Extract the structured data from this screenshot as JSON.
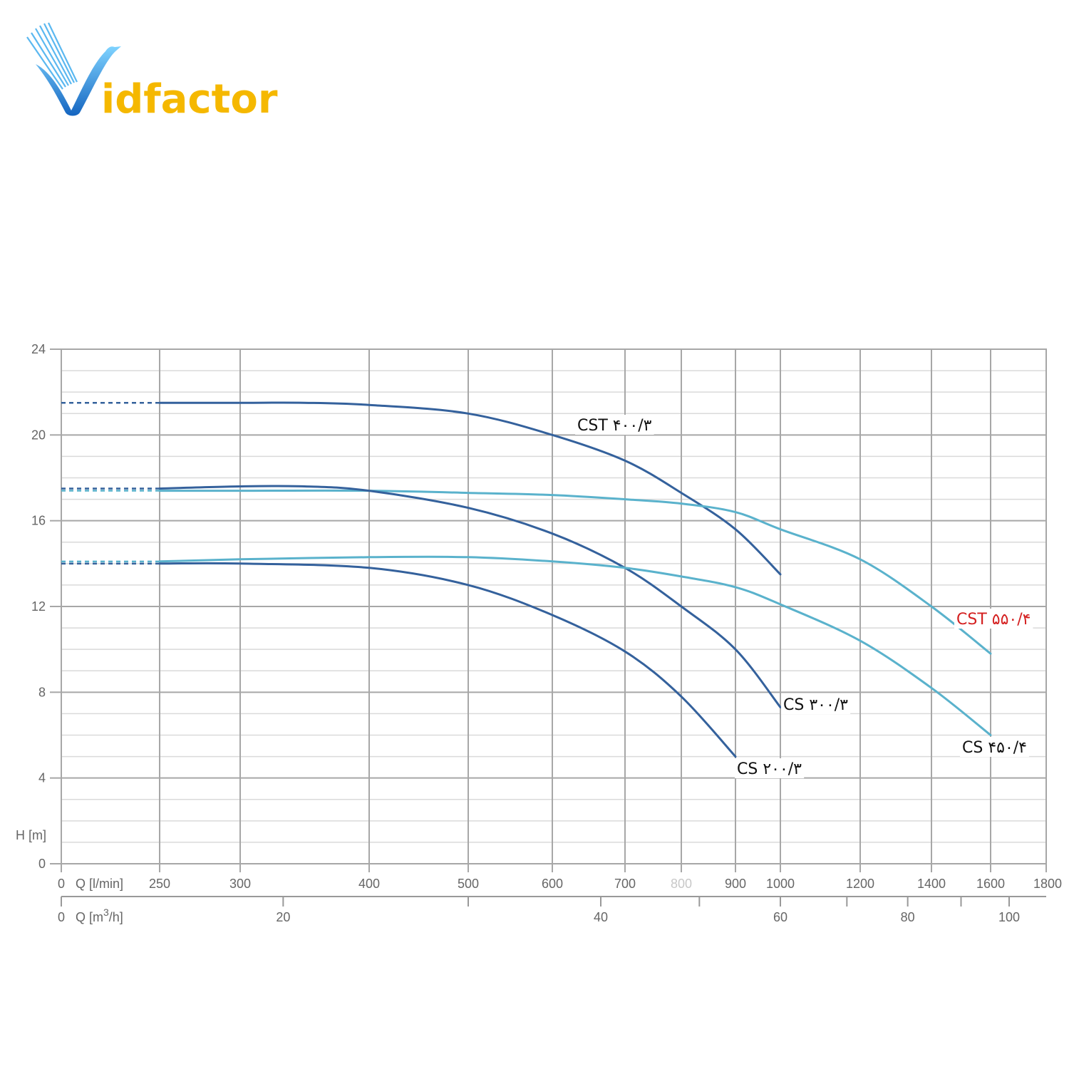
{
  "brand": {
    "name": "Vidfactor",
    "mark": "V",
    "word": "idfactor",
    "colors": {
      "blue": "#1e88e5",
      "blue_light": "#6ec6ff",
      "gold": "#f5b800"
    }
  },
  "chart_data": {
    "type": "line",
    "xlabel": "Q [l/min]",
    "x2label_prefix": "Q [m",
    "x2label_sup": "3",
    "x2label_suffix": "/h]",
    "ylabel": "H [m]",
    "ylim": [
      0,
      24
    ],
    "yticks": [
      0,
      4,
      8,
      12,
      16,
      20,
      24
    ],
    "x_major_ticks": [
      "0",
      "250",
      "300",
      "400",
      "500",
      "600",
      "700",
      "800",
      "900",
      "1000",
      "1200",
      "1400",
      "1600",
      "1800"
    ],
    "x2_ticks": [
      "0",
      "20",
      "40",
      "60",
      "80",
      "100"
    ],
    "grid": true,
    "colors": {
      "dark": "#34619c",
      "light": "#5ab2cc",
      "label_highlight": "#d42020",
      "label": "#111111",
      "grid_major": "#a7a7a7",
      "grid_minor": "#dadada"
    },
    "series": [
      {
        "name": "CST ۴۰۰/۳",
        "color": "dark",
        "label_color": "label",
        "shutoff_head": 21.5,
        "points": [
          [
            250,
            21.5
          ],
          [
            300,
            21.5
          ],
          [
            350,
            21.5
          ],
          [
            400,
            21.4
          ],
          [
            500,
            21.0
          ],
          [
            600,
            20.0
          ],
          [
            700,
            18.8
          ],
          [
            800,
            17.3
          ],
          [
            900,
            15.6
          ],
          [
            1000,
            13.5
          ]
        ]
      },
      {
        "name": "CST ۵۵۰/۴",
        "color": "light",
        "label_color": "label_highlight",
        "shutoff_head": 17.4,
        "points": [
          [
            250,
            17.4
          ],
          [
            300,
            17.4
          ],
          [
            400,
            17.4
          ],
          [
            500,
            17.3
          ],
          [
            600,
            17.2
          ],
          [
            700,
            17.0
          ],
          [
            800,
            16.8
          ],
          [
            900,
            16.4
          ],
          [
            1000,
            15.6
          ],
          [
            1200,
            14.2
          ],
          [
            1400,
            12.0
          ],
          [
            1600,
            9.8
          ]
        ]
      },
      {
        "name": "CS ۳۰۰/۳",
        "color": "dark",
        "label_color": "label",
        "shutoff_head": 17.5,
        "points": [
          [
            250,
            17.5
          ],
          [
            300,
            17.6
          ],
          [
            350,
            17.6
          ],
          [
            400,
            17.4
          ],
          [
            500,
            16.6
          ],
          [
            600,
            15.4
          ],
          [
            700,
            13.8
          ],
          [
            800,
            12.0
          ],
          [
            900,
            10.0
          ],
          [
            1000,
            7.3
          ]
        ]
      },
      {
        "name": "CS ۴۵۰/۴",
        "color": "light",
        "label_color": "label",
        "shutoff_head": 14.1,
        "points": [
          [
            250,
            14.1
          ],
          [
            300,
            14.2
          ],
          [
            400,
            14.3
          ],
          [
            500,
            14.3
          ],
          [
            600,
            14.1
          ],
          [
            700,
            13.8
          ],
          [
            800,
            13.4
          ],
          [
            900,
            12.9
          ],
          [
            1000,
            12.1
          ],
          [
            1200,
            10.4
          ],
          [
            1400,
            8.2
          ],
          [
            1600,
            6.0
          ]
        ]
      },
      {
        "name": "CS ۲۰۰/۳",
        "color": "dark",
        "label_color": "label",
        "shutoff_head": 14.0,
        "points": [
          [
            250,
            14.0
          ],
          [
            300,
            14.0
          ],
          [
            400,
            13.8
          ],
          [
            500,
            13.0
          ],
          [
            600,
            11.6
          ],
          [
            700,
            9.9
          ],
          [
            800,
            7.8
          ],
          [
            900,
            5.0
          ]
        ]
      }
    ]
  }
}
